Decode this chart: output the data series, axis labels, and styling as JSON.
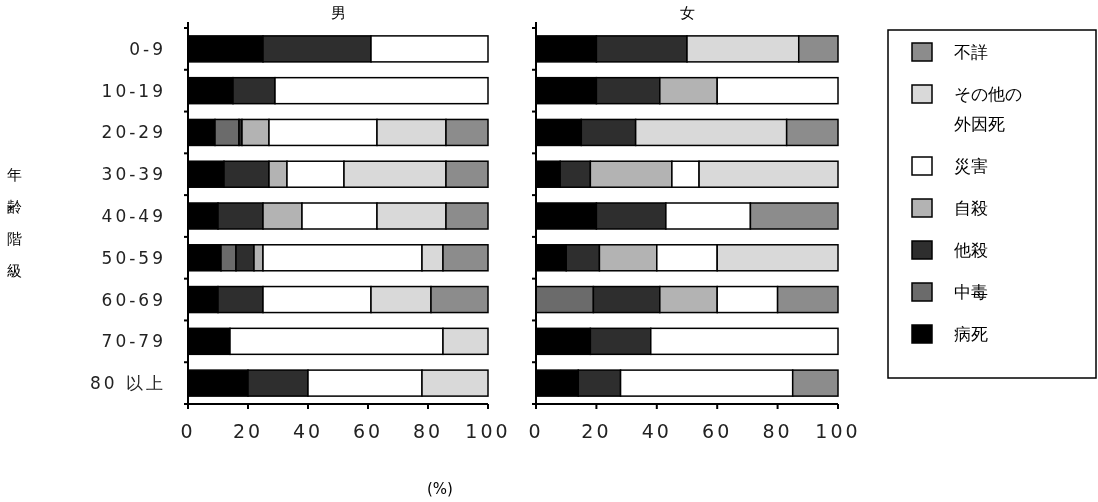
{
  "chart_data": [
    {
      "type": "bar",
      "orientation": "horizontal",
      "stacked": true,
      "title": "男",
      "ylabel": "年齢階級",
      "xlabel": "(%)",
      "categories": [
        "0-9",
        "10-19",
        "20-29",
        "30-39",
        "40-49",
        "50-59",
        "60-69",
        "70-79",
        "80 以上"
      ],
      "xlim": [
        0,
        100
      ],
      "xticks": [
        0,
        20,
        40,
        60,
        80,
        100
      ],
      "series": [
        {
          "color": "#000000",
          "values": [
            25,
            15,
            9,
            12,
            10,
            11,
            10,
            14,
            20
          ]
        },
        {
          "color": "#6b6b6b",
          "values": [
            0,
            0,
            8,
            0,
            0,
            5,
            0,
            0,
            0
          ]
        },
        {
          "color": "#2e2e2e",
          "values": [
            36,
            14,
            1,
            15,
            15,
            6,
            15,
            0,
            20
          ]
        },
        {
          "color": "#b3b3b3",
          "values": [
            0,
            0,
            9,
            6,
            13,
            3,
            0,
            0,
            0
          ]
        },
        {
          "color": "#ffffff",
          "values": [
            39,
            71,
            36,
            19,
            25,
            53,
            36,
            71,
            38
          ]
        },
        {
          "color": "#d9d9d9",
          "values": [
            0,
            0,
            23,
            34,
            23,
            7,
            20,
            15,
            22
          ]
        },
        {
          "color": "#8c8c8c",
          "values": [
            0,
            0,
            14,
            14,
            14,
            15,
            19,
            0,
            0
          ]
        }
      ]
    },
    {
      "type": "bar",
      "orientation": "horizontal",
      "stacked": true,
      "title": "女",
      "legend": "right",
      "categories": [
        null,
        null,
        null,
        null,
        null,
        null,
        null,
        null,
        null
      ],
      "xlim": [
        0,
        100
      ],
      "xticks": [
        0,
        20,
        40,
        60,
        80,
        100
      ],
      "series": [
        {
          "name": "病死",
          "color": "#000000",
          "values": [
            20,
            20,
            15,
            8,
            20,
            10,
            0,
            18,
            14
          ]
        },
        {
          "name": "中毒",
          "color": "#6b6b6b",
          "values": [
            0,
            0,
            0,
            0,
            0,
            0,
            19,
            0,
            0
          ]
        },
        {
          "name": "他殺",
          "color": "#2e2e2e",
          "values": [
            30,
            21,
            18,
            10,
            23,
            11,
            22,
            20,
            14
          ]
        },
        {
          "name": "自殺",
          "color": "#b3b3b3",
          "values": [
            0,
            19,
            0,
            27,
            0,
            19,
            19,
            0,
            0
          ]
        },
        {
          "name": "災害",
          "color": "#ffffff",
          "values": [
            0,
            40,
            0,
            9,
            28,
            20,
            20,
            62,
            57
          ]
        },
        {
          "name": "その他の外因死",
          "color": "#d9d9d9",
          "values": [
            37,
            0,
            50,
            46,
            0,
            40,
            0,
            0,
            0
          ]
        },
        {
          "name": "不詳",
          "color": "#8c8c8c",
          "values": [
            13,
            0,
            17,
            0,
            29,
            0,
            20,
            0,
            15
          ]
        }
      ]
    }
  ]
}
